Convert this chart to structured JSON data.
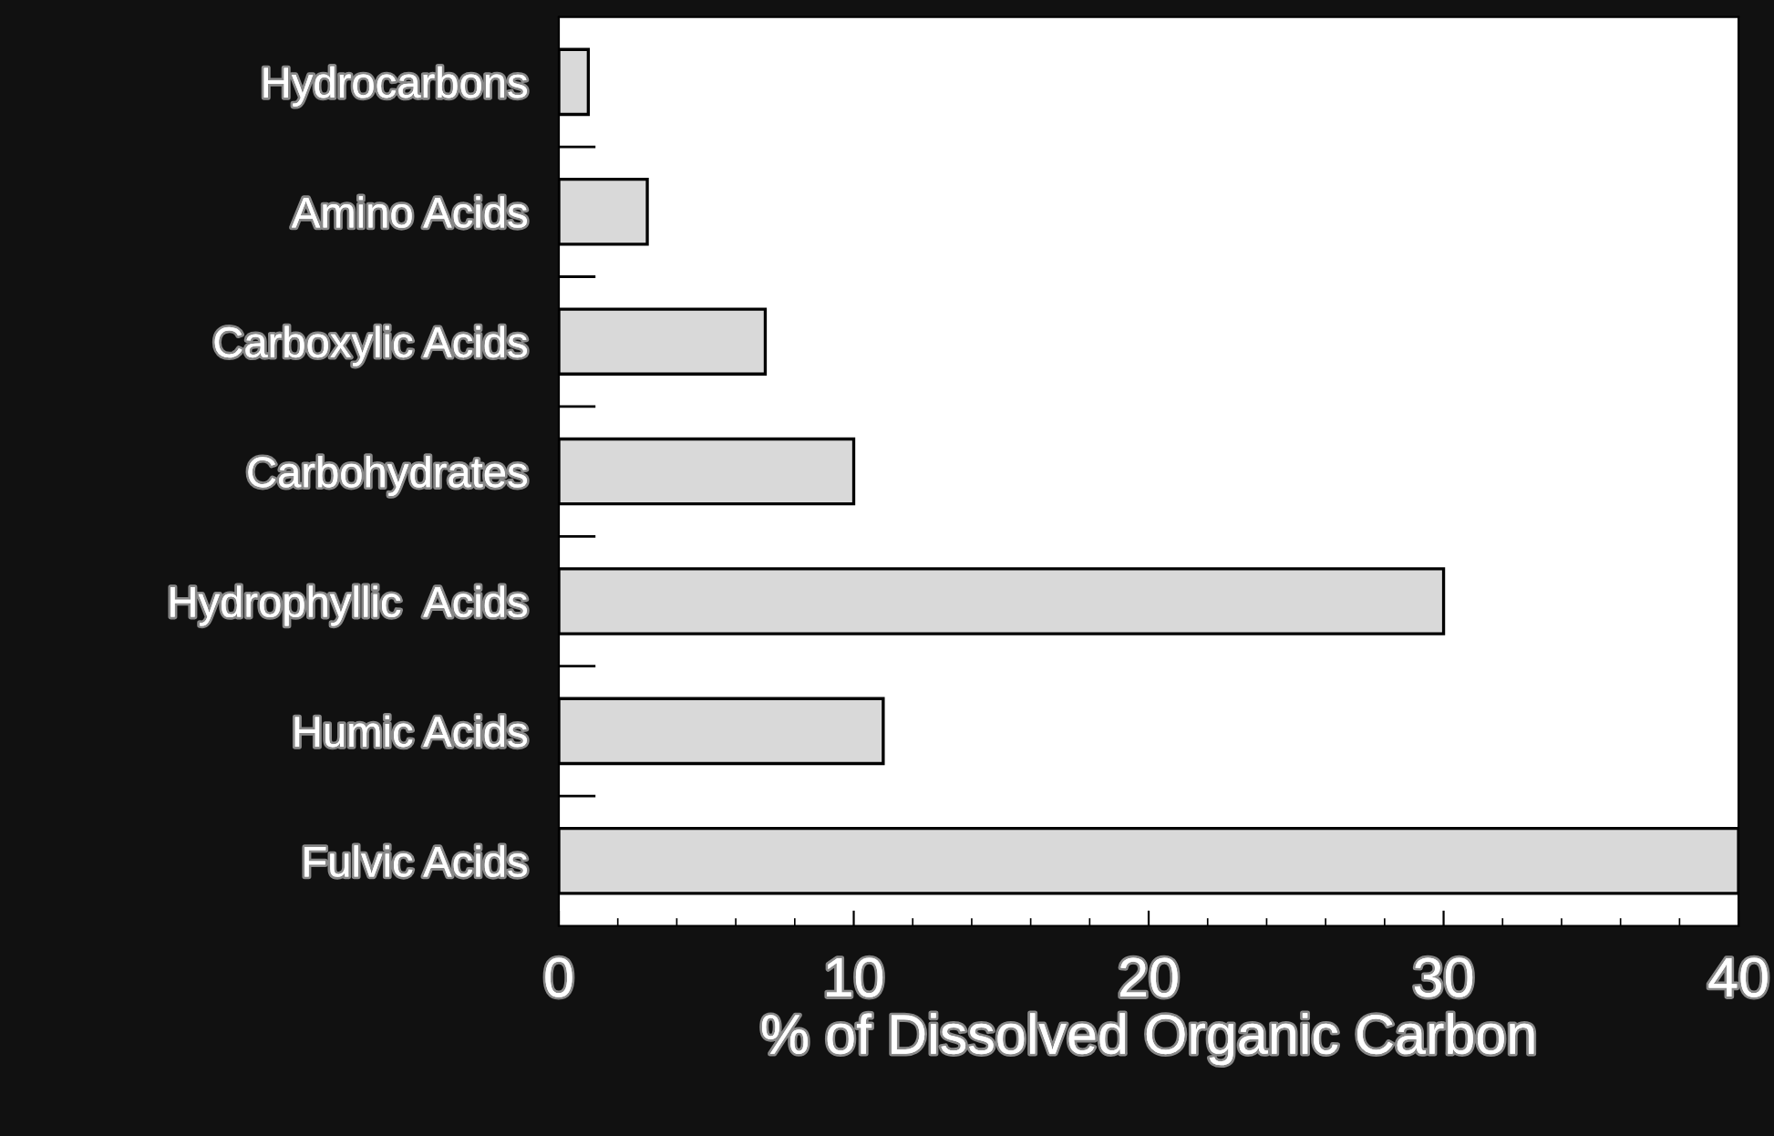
{
  "chart_data": {
    "type": "bar",
    "orientation": "horizontal",
    "xlabel": "% of Dissolved Organic Carbon",
    "categories": [
      "Hydrocarbons",
      "Amino Acids",
      "Carboxylic Acids",
      "Carbohydrates",
      "Hydrophyllic  Acids",
      "Humic Acids",
      "Fulvic Acids"
    ],
    "values": [
      1,
      3,
      7,
      10,
      30,
      11,
      40
    ],
    "color": "#d9d9d9",
    "xlim": [
      0,
      40
    ],
    "xticks": [
      0,
      10,
      20,
      30,
      40
    ],
    "grid": false,
    "legend": false
  }
}
